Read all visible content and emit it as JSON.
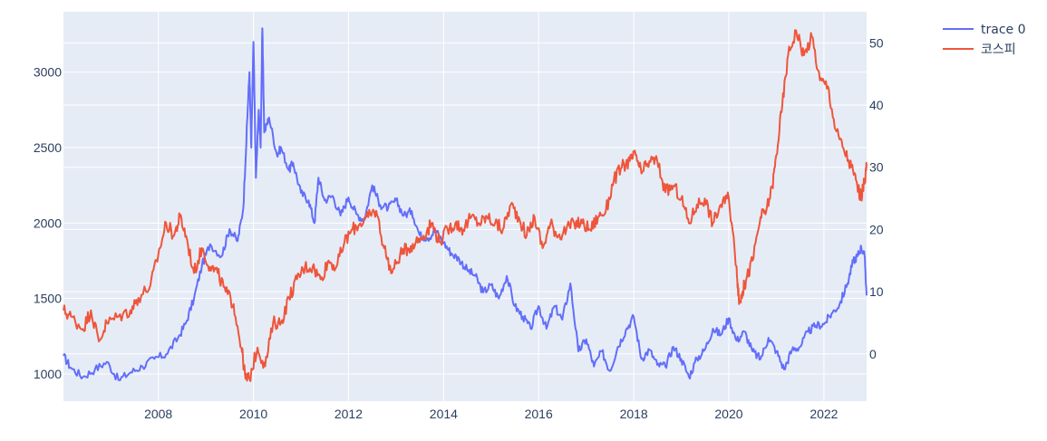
{
  "chart_data": {
    "type": "line",
    "title": "",
    "xlabel": "",
    "ylabel_left": "",
    "ylabel_right": "",
    "x_range": [
      "2006-01-02",
      "2022-11-25"
    ],
    "x_ticks": [
      {
        "label": "2008",
        "date": "2008-01-01"
      },
      {
        "label": "2010",
        "date": "2010-01-01"
      },
      {
        "label": "2012",
        "date": "2012-01-01"
      },
      {
        "label": "2014",
        "date": "2014-01-01"
      },
      {
        "label": "2016",
        "date": "2016-01-01"
      },
      {
        "label": "2018",
        "date": "2018-01-01"
      },
      {
        "label": "2020",
        "date": "2020-01-01"
      },
      {
        "label": "2022",
        "date": "2022-01-01"
      }
    ],
    "y_left": {
      "range": [
        820,
        3400
      ],
      "ticks": [
        1000,
        1500,
        2000,
        2500,
        3000
      ]
    },
    "y_right": {
      "range": [
        -7.6,
        55
      ],
      "ticks": [
        0,
        10,
        20,
        30,
        40,
        50
      ]
    },
    "grid": true,
    "legend_position": "top-right",
    "plot_background": "#e5ecf6",
    "series": [
      {
        "name": "trace 0",
        "color": "#636efa",
        "axis": "left",
        "points": [
          [
            "2006-01-02",
            1120
          ],
          [
            "2006-03-01",
            1040
          ],
          [
            "2006-06-01",
            980
          ],
          [
            "2006-09-01",
            1030
          ],
          [
            "2006-12-01",
            1080
          ],
          [
            "2007-03-01",
            960
          ],
          [
            "2007-06-01",
            1010
          ],
          [
            "2007-09-01",
            1050
          ],
          [
            "2007-12-01",
            1100
          ],
          [
            "2008-03-01",
            1130
          ],
          [
            "2008-06-01",
            1240
          ],
          [
            "2008-08-01",
            1340
          ],
          [
            "2008-10-01",
            1500
          ],
          [
            "2008-12-01",
            1720
          ],
          [
            "2009-02-01",
            1860
          ],
          [
            "2009-05-01",
            1780
          ],
          [
            "2009-07-01",
            1960
          ],
          [
            "2009-09-01",
            1880
          ],
          [
            "2009-10-15",
            2100
          ],
          [
            "2009-11-15",
            2700
          ],
          [
            "2009-12-01",
            3000
          ],
          [
            "2009-12-15",
            2500
          ],
          [
            "2010-01-01",
            3200
          ],
          [
            "2010-01-20",
            2300
          ],
          [
            "2010-02-10",
            2750
          ],
          [
            "2010-02-25",
            2500
          ],
          [
            "2010-03-10",
            3290
          ],
          [
            "2010-03-25",
            2600
          ],
          [
            "2010-05-01",
            2700
          ],
          [
            "2010-07-01",
            2450
          ],
          [
            "2010-08-01",
            2500
          ],
          [
            "2010-10-01",
            2350
          ],
          [
            "2010-11-01",
            2400
          ],
          [
            "2011-01-01",
            2200
          ],
          [
            "2011-03-01",
            2150
          ],
          [
            "2011-04-15",
            2000
          ],
          [
            "2011-05-15",
            2300
          ],
          [
            "2011-07-01",
            2150
          ],
          [
            "2011-09-01",
            2180
          ],
          [
            "2011-11-01",
            2050
          ],
          [
            "2012-01-01",
            2170
          ],
          [
            "2012-03-01",
            2060
          ],
          [
            "2012-05-01",
            2020
          ],
          [
            "2012-07-01",
            2250
          ],
          [
            "2012-09-01",
            2120
          ],
          [
            "2012-11-01",
            2100
          ],
          [
            "2013-01-01",
            2150
          ],
          [
            "2013-03-01",
            2050
          ],
          [
            "2013-05-01",
            2080
          ],
          [
            "2013-07-01",
            1920
          ],
          [
            "2013-09-01",
            1900
          ],
          [
            "2013-11-01",
            1950
          ],
          [
            "2014-01-01",
            1870
          ],
          [
            "2014-03-01",
            1800
          ],
          [
            "2014-05-01",
            1760
          ],
          [
            "2014-07-01",
            1690
          ],
          [
            "2014-09-01",
            1650
          ],
          [
            "2014-11-01",
            1540
          ],
          [
            "2015-01-01",
            1590
          ],
          [
            "2015-03-01",
            1500
          ],
          [
            "2015-05-01",
            1650
          ],
          [
            "2015-07-01",
            1450
          ],
          [
            "2015-09-01",
            1380
          ],
          [
            "2015-11-01",
            1300
          ],
          [
            "2016-01-01",
            1450
          ],
          [
            "2016-03-01",
            1300
          ],
          [
            "2016-05-01",
            1450
          ],
          [
            "2016-07-01",
            1360
          ],
          [
            "2016-09-01",
            1600
          ],
          [
            "2016-11-01",
            1150
          ],
          [
            "2017-01-01",
            1230
          ],
          [
            "2017-03-01",
            1050
          ],
          [
            "2017-05-01",
            1150
          ],
          [
            "2017-07-01",
            1020
          ],
          [
            "2017-09-01",
            1180
          ],
          [
            "2017-11-01",
            1290
          ],
          [
            "2018-01-01",
            1380
          ],
          [
            "2018-03-01",
            1100
          ],
          [
            "2018-05-01",
            1160
          ],
          [
            "2018-07-01",
            1060
          ],
          [
            "2018-09-01",
            1050
          ],
          [
            "2018-11-01",
            1180
          ],
          [
            "2019-01-01",
            1100
          ],
          [
            "2019-03-01",
            980
          ],
          [
            "2019-05-01",
            1100
          ],
          [
            "2019-07-01",
            1160
          ],
          [
            "2019-09-01",
            1300
          ],
          [
            "2019-11-01",
            1260
          ],
          [
            "2020-01-01",
            1370
          ],
          [
            "2020-03-01",
            1220
          ],
          [
            "2020-05-01",
            1280
          ],
          [
            "2020-07-01",
            1150
          ],
          [
            "2020-09-01",
            1100
          ],
          [
            "2020-11-01",
            1240
          ],
          [
            "2021-01-01",
            1150
          ],
          [
            "2021-03-01",
            1030
          ],
          [
            "2021-05-01",
            1160
          ],
          [
            "2021-07-01",
            1180
          ],
          [
            "2021-09-01",
            1280
          ],
          [
            "2021-11-01",
            1320
          ],
          [
            "2022-01-01",
            1330
          ],
          [
            "2022-03-01",
            1400
          ],
          [
            "2022-05-01",
            1460
          ],
          [
            "2022-07-01",
            1600
          ],
          [
            "2022-08-15",
            1750
          ],
          [
            "2022-09-15",
            1780
          ],
          [
            "2022-10-15",
            1840
          ],
          [
            "2022-11-10",
            1780
          ],
          [
            "2022-11-25",
            1520
          ]
        ]
      },
      {
        "name": "코스피",
        "color": "#ef553b",
        "axis": "right",
        "points": [
          [
            "2006-01-02",
            7
          ],
          [
            "2006-03-01",
            6
          ],
          [
            "2006-06-01",
            4
          ],
          [
            "2006-08-01",
            7
          ],
          [
            "2006-10-01",
            2
          ],
          [
            "2006-12-01",
            5
          ],
          [
            "2007-03-01",
            6
          ],
          [
            "2007-06-01",
            7
          ],
          [
            "2007-08-01",
            9
          ],
          [
            "2007-11-01",
            11
          ],
          [
            "2008-01-01",
            16
          ],
          [
            "2008-03-01",
            21
          ],
          [
            "2008-05-01",
            19
          ],
          [
            "2008-06-15",
            22
          ],
          [
            "2008-08-01",
            19
          ],
          [
            "2008-10-01",
            13
          ],
          [
            "2008-12-01",
            17
          ],
          [
            "2009-02-01",
            14
          ],
          [
            "2009-04-01",
            13
          ],
          [
            "2009-06-01",
            10
          ],
          [
            "2009-08-01",
            8
          ],
          [
            "2009-10-01",
            1
          ],
          [
            "2009-11-01",
            -4
          ],
          [
            "2009-12-01",
            -4
          ],
          [
            "2010-02-01",
            1
          ],
          [
            "2010-04-01",
            -2
          ],
          [
            "2010-06-01",
            5
          ],
          [
            "2010-08-01",
            5
          ],
          [
            "2010-10-01",
            9
          ],
          [
            "2010-12-01",
            12
          ],
          [
            "2011-02-01",
            14
          ],
          [
            "2011-04-01",
            14
          ],
          [
            "2011-06-01",
            12
          ],
          [
            "2011-08-01",
            15
          ],
          [
            "2011-10-01",
            14
          ],
          [
            "2011-12-01",
            18
          ],
          [
            "2012-02-01",
            20
          ],
          [
            "2012-04-01",
            21
          ],
          [
            "2012-06-01",
            22
          ],
          [
            "2012-08-01",
            23
          ],
          [
            "2012-10-01",
            17
          ],
          [
            "2012-12-01",
            13
          ],
          [
            "2013-02-01",
            16
          ],
          [
            "2013-04-01",
            17
          ],
          [
            "2013-06-01",
            18
          ],
          [
            "2013-08-01",
            19
          ],
          [
            "2013-10-01",
            21
          ],
          [
            "2013-12-01",
            18
          ],
          [
            "2014-02-01",
            20
          ],
          [
            "2014-04-01",
            21
          ],
          [
            "2014-06-01",
            20
          ],
          [
            "2014-08-01",
            22
          ],
          [
            "2014-10-01",
            21
          ],
          [
            "2014-12-01",
            22
          ],
          [
            "2015-02-01",
            21
          ],
          [
            "2015-04-01",
            20
          ],
          [
            "2015-06-01",
            24
          ],
          [
            "2015-08-01",
            22
          ],
          [
            "2015-10-01",
            19
          ],
          [
            "2015-12-01",
            22
          ],
          [
            "2016-02-01",
            17
          ],
          [
            "2016-04-01",
            21
          ],
          [
            "2016-06-01",
            19
          ],
          [
            "2016-08-01",
            20
          ],
          [
            "2016-10-01",
            21
          ],
          [
            "2016-12-01",
            21
          ],
          [
            "2017-02-01",
            20
          ],
          [
            "2017-04-01",
            22
          ],
          [
            "2017-06-01",
            23
          ],
          [
            "2017-08-01",
            28
          ],
          [
            "2017-10-01",
            30
          ],
          [
            "2017-12-01",
            31
          ],
          [
            "2018-01-15",
            32
          ],
          [
            "2018-03-01",
            29
          ],
          [
            "2018-05-01",
            31
          ],
          [
            "2018-07-01",
            31
          ],
          [
            "2018-09-01",
            26
          ],
          [
            "2018-11-01",
            27
          ],
          [
            "2019-01-01",
            25
          ],
          [
            "2019-03-01",
            21
          ],
          [
            "2019-05-01",
            24
          ],
          [
            "2019-07-01",
            25
          ],
          [
            "2019-09-01",
            21
          ],
          [
            "2019-11-01",
            24
          ],
          [
            "2020-01-01",
            25
          ],
          [
            "2020-03-01",
            14
          ],
          [
            "2020-03-20",
            8
          ],
          [
            "2020-04-15",
            10
          ],
          [
            "2020-05-15",
            12
          ],
          [
            "2020-07-01",
            15
          ],
          [
            "2020-09-01",
            22
          ],
          [
            "2020-10-15",
            23
          ],
          [
            "2020-12-01",
            27
          ],
          [
            "2021-01-01",
            32
          ],
          [
            "2021-02-15",
            40
          ],
          [
            "2021-04-01",
            48
          ],
          [
            "2021-06-01",
            52
          ],
          [
            "2021-08-01",
            48
          ],
          [
            "2021-10-01",
            51
          ],
          [
            "2021-12-01",
            44
          ],
          [
            "2022-02-01",
            43
          ],
          [
            "2022-04-01",
            36
          ],
          [
            "2022-06-01",
            33
          ],
          [
            "2022-08-01",
            30
          ],
          [
            "2022-09-15",
            27
          ],
          [
            "2022-10-15",
            25
          ],
          [
            "2022-11-10",
            28
          ],
          [
            "2022-11-25",
            30
          ]
        ]
      }
    ]
  }
}
